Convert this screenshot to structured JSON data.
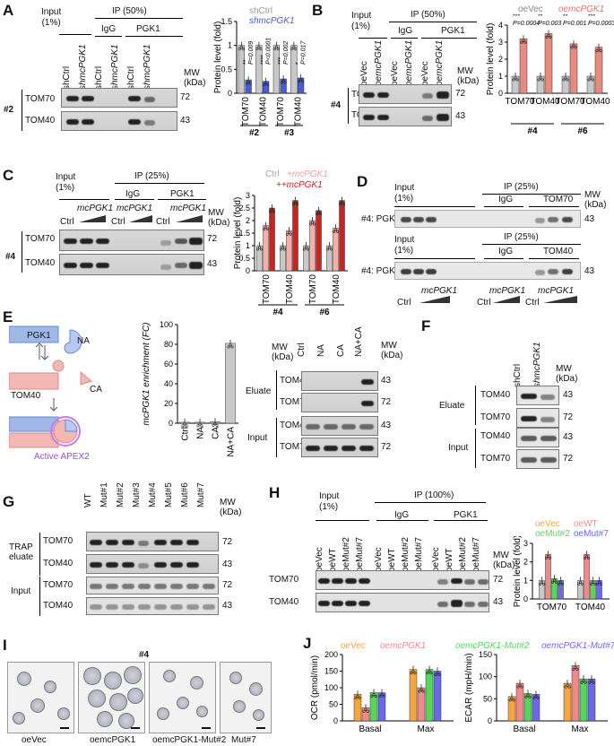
{
  "panels": {
    "A": {
      "label": "A",
      "input_label": "Input\n(1%)",
      "ip_label": "IP (50%)",
      "igg": "IgG",
      "pgk1": "PGK1",
      "lanes": [
        "shCtrl",
        "shmcPGK1",
        "shCtrl",
        "shmcPGK1",
        "shCtrl",
        "shmcPGK1"
      ],
      "mw": "MW\n(kDa)",
      "clone": "#2",
      "rows": [
        "TOM70",
        "TOM40"
      ],
      "mws": [
        "72",
        "43"
      ],
      "legend": [
        "shCtrl",
        "shmcPGK1"
      ]
    },
    "B": {
      "label": "B",
      "input_label": "Input\n(1%)",
      "ip_label": "IP (50%)",
      "igg": "IgG",
      "pgk1": "PGK1",
      "lanes": [
        "oeVec",
        "oemcPGK1",
        "oeVec",
        "oemcPGK1",
        "oeVec",
        "oemcPGK1"
      ],
      "mw": "MW\n(kDa)",
      "clone": "#4",
      "rows": [
        "TOM70",
        "TOM40"
      ],
      "mws": [
        "72",
        "43"
      ],
      "legend": [
        "oeVec",
        "oemcPGK1"
      ]
    },
    "C": {
      "label": "C",
      "input_label": "Input\n(1%)",
      "ip_label": "IP (25%)",
      "igg": "IgG",
      "pgk1": "PGK1",
      "mcpgk1": "mcPGK1",
      "ctrl": "Ctrl",
      "mw": "MW\n(kDa)",
      "clone": "#4",
      "rows": [
        "TOM70",
        "TOM40"
      ],
      "mws": [
        "72",
        "43"
      ],
      "legend": [
        "Ctrl",
        "+mcPGK1",
        "++mcPGK1"
      ]
    },
    "D": {
      "label": "D",
      "input_label": "Input\n(1%)",
      "ip_label": "IP (25%)",
      "igg": "IgG",
      "tom70": "TOM70",
      "tom40": "TOM40",
      "row": "#4: PGK1",
      "mw": "MW\n(kDa)",
      "mws": [
        "43",
        "43"
      ],
      "mcpgk1": "mcPGK1",
      "ctrl": "Ctrl"
    },
    "E": {
      "label": "E",
      "pgk1": "PGK1",
      "na": "NA",
      "tom40": "TOM40",
      "ca": "CA",
      "apex": "Active APEX2",
      "ylabel": "mcPGK1 enrichment (FC)",
      "eluate": "Eluate",
      "input": "Input",
      "rows": [
        "TOM40",
        "TOM70",
        "TOM40",
        "TOM70"
      ],
      "mws": [
        "43",
        "72",
        "43",
        "72"
      ],
      "lanes": [
        "Ctrl",
        "NA",
        "CA",
        "NA+CA"
      ],
      "mw": "MW\n(kDa)"
    },
    "F": {
      "label": "F",
      "lanes": [
        "shCtrl",
        "shmcPGK1"
      ],
      "mw": "MW\n(kDa)",
      "eluate": "Eluate",
      "input": "Input",
      "rows": [
        "TOM40",
        "TOM70",
        "TOM40",
        "TOM70"
      ],
      "mws": [
        "43",
        "72",
        "43",
        "72"
      ]
    },
    "G": {
      "label": "G",
      "lanes": [
        "WT",
        "Mut#1",
        "Mut#2",
        "Mut#3",
        "Mut#4",
        "Mut#5",
        "Mut#6",
        "Mut#7"
      ],
      "mw": "MW\n(kDa)",
      "trap": "TRAP\neluate",
      "input": "Input",
      "rows": [
        "TOM70",
        "TOM40",
        "TOM70",
        "TOM40"
      ],
      "mws": [
        "72",
        "43",
        "72",
        "43"
      ]
    },
    "H": {
      "label": "H",
      "input_label": "Input\n(1%)",
      "ip_label": "IP (100%)",
      "igg": "IgG",
      "pgk1": "PGK1",
      "lanes": [
        "oeVec",
        "oeWT",
        "oeMut#2",
        "oeMut#7",
        "oeVec",
        "oeWT",
        "oeMut#2",
        "oeMut#7",
        "oeVec",
        "oeWT",
        "oeMut#2",
        "oeMut#7"
      ],
      "mw": "MW\n(kDa)",
      "rows": [
        "TOM70",
        "TOM40"
      ],
      "mws": [
        "72",
        "43"
      ],
      "legend": [
        "oeVec",
        "oeWT",
        "oeMut#2",
        "oeMut#7"
      ]
    },
    "I": {
      "label": "I",
      "clone": "#4",
      "captions": [
        "oeVec",
        "oemcPGK1",
        "oemcPGK1-Mut#2",
        "Mut#7"
      ]
    },
    "J": {
      "label": "J",
      "legend": [
        "oeVec",
        "oemcPGK1",
        "oemcPGK1-Mut#2",
        "oemcPGK1-Mut#7"
      ]
    }
  },
  "colors": {
    "grey": "#c8c8c8",
    "blue": "#4a5bd6",
    "salmon": "#e88a80",
    "red": "#d12020",
    "orange": "#f5a640",
    "pink": "#f08a8a",
    "green": "#56d65a",
    "purple": "#6a6ae8",
    "lightsalmon": "#f2b0a8"
  },
  "chart_data": [
    {
      "type": "bar",
      "panel": "A",
      "ylabel": "Protein level (fold)",
      "ylim": [
        0,
        1.5
      ],
      "yticks": [
        0,
        0.5,
        1,
        1.5
      ],
      "categories": [
        "TOM70",
        "TOM40",
        "TOM70",
        "TOM40"
      ],
      "groups": [
        "#2",
        "#3"
      ],
      "series": [
        {
          "name": "shCtrl",
          "values": [
            1,
            1,
            1,
            1
          ]
        },
        {
          "name": "shmcPGK1",
          "values": [
            0.28,
            0.25,
            0.3,
            0.32
          ]
        }
      ],
      "annotations": [
        "**",
        "P=0.009",
        "****",
        "P<0.0001",
        "***",
        "P=0.002",
        "*",
        "P=0.017"
      ]
    },
    {
      "type": "bar",
      "panel": "B",
      "ylabel": "Protein level (fold)",
      "ylim": [
        0,
        4
      ],
      "yticks": [
        0,
        1,
        2,
        3,
        4
      ],
      "categories": [
        "TOM70",
        "TOM40",
        "TOM70",
        "TOM40"
      ],
      "groups": [
        "#4",
        "#6"
      ],
      "series": [
        {
          "name": "oeVec",
          "values": [
            1,
            1,
            1,
            1
          ]
        },
        {
          "name": "oemcPGK1",
          "values": [
            3.2,
            3.5,
            2.9,
            2.7
          ]
        }
      ],
      "annotations": [
        "***",
        "P=0.0004",
        "**",
        "P=0.003",
        "**",
        "P=0.001",
        "***",
        "P=0.0003"
      ]
    },
    {
      "type": "bar",
      "panel": "C",
      "ylabel": "Protein level (fold)",
      "ylim": [
        0,
        3
      ],
      "yticks": [
        0,
        0.5,
        1,
        1.5,
        2,
        2.5,
        3
      ],
      "categories": [
        "TOM70",
        "TOM40",
        "TOM70",
        "TOM40"
      ],
      "groups": [
        "#4",
        "#6"
      ],
      "series": [
        {
          "name": "Ctrl",
          "values": [
            1,
            1,
            1,
            1
          ]
        },
        {
          "name": "+mcPGK1",
          "values": [
            1.8,
            1.6,
            2.0,
            1.7
          ]
        },
        {
          "name": "++mcPGK1",
          "values": [
            2.5,
            2.8,
            2.4,
            2.8
          ]
        }
      ]
    },
    {
      "type": "bar",
      "panel": "E",
      "ylabel": "mcPGK1 enrichment (FC)",
      "ylim": [
        0,
        100
      ],
      "yticks": [
        0,
        20,
        40,
        60,
        80,
        100
      ],
      "categories": [
        "Ctrl",
        "NA",
        "CA",
        "NA+CA"
      ],
      "series": [
        {
          "values": [
            1,
            1,
            1.5,
            81
          ]
        }
      ]
    },
    {
      "type": "bar",
      "panel": "H",
      "ylabel": "Protein level (fold)",
      "ylim": [
        0,
        3
      ],
      "yticks": [
        0,
        1,
        2,
        3
      ],
      "categories": [
        "TOM70",
        "TOM40"
      ],
      "series": [
        {
          "name": "oeVec",
          "values": [
            1,
            1
          ]
        },
        {
          "name": "oeWT",
          "values": [
            2.4,
            2.4
          ]
        },
        {
          "name": "oeMut#2",
          "values": [
            1.1,
            1.0
          ]
        },
        {
          "name": "oeMut#7",
          "values": [
            1.0,
            1.0
          ]
        }
      ]
    },
    {
      "type": "bar",
      "panel": "J-OCR",
      "ylabel": "OCR (pmol/min)",
      "ylim": [
        0,
        200
      ],
      "yticks": [
        0,
        50,
        100,
        150,
        200
      ],
      "categories": [
        "Basal",
        "Max"
      ],
      "series": [
        {
          "name": "oeVec",
          "values": [
            80,
            155
          ]
        },
        {
          "name": "oemcPGK1",
          "values": [
            40,
            100
          ]
        },
        {
          "name": "oemcPGK1-Mut#2",
          "values": [
            85,
            155
          ]
        },
        {
          "name": "oemcPGK1-Mut#7",
          "values": [
            85,
            150
          ]
        }
      ]
    },
    {
      "type": "bar",
      "panel": "J-ECAR",
      "ylabel": "ECAR (mpH/min)",
      "ylim": [
        0,
        150
      ],
      "yticks": [
        0,
        50,
        100,
        150
      ],
      "categories": [
        "Basal",
        "Max"
      ],
      "series": [
        {
          "name": "oeVec",
          "values": [
            55,
            85
          ]
        },
        {
          "name": "oemcPGK1",
          "values": [
            85,
            125
          ]
        },
        {
          "name": "oemcPGK1-Mut#2",
          "values": [
            62,
            95
          ]
        },
        {
          "name": "oemcPGK1-Mut#7",
          "values": [
            60,
            95
          ]
        }
      ]
    }
  ]
}
